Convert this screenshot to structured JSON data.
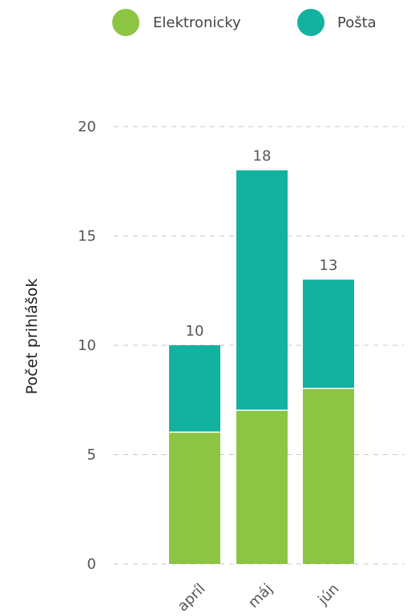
{
  "chart_data": {
    "type": "bar",
    "stacked": true,
    "categories": [
      "apríl",
      "máj",
      "jún"
    ],
    "series": [
      {
        "name": "Elektronicky",
        "values": [
          6,
          7,
          8
        ],
        "color": "#8cc543"
      },
      {
        "name": "Pošta",
        "values": [
          4,
          11,
          5
        ],
        "color": "#13b19f"
      }
    ],
    "totals": [
      "10",
      "18",
      "13"
    ],
    "title": "",
    "xlabel": "",
    "ylabel": "Počet prihlášok",
    "ylim": [
      0,
      20
    ],
    "yticks": [
      0,
      5,
      10,
      15,
      20
    ],
    "ytick_labels": [
      "0",
      "5",
      "10",
      "15",
      "20"
    ],
    "grid": true,
    "legend_position": "top-right"
  }
}
